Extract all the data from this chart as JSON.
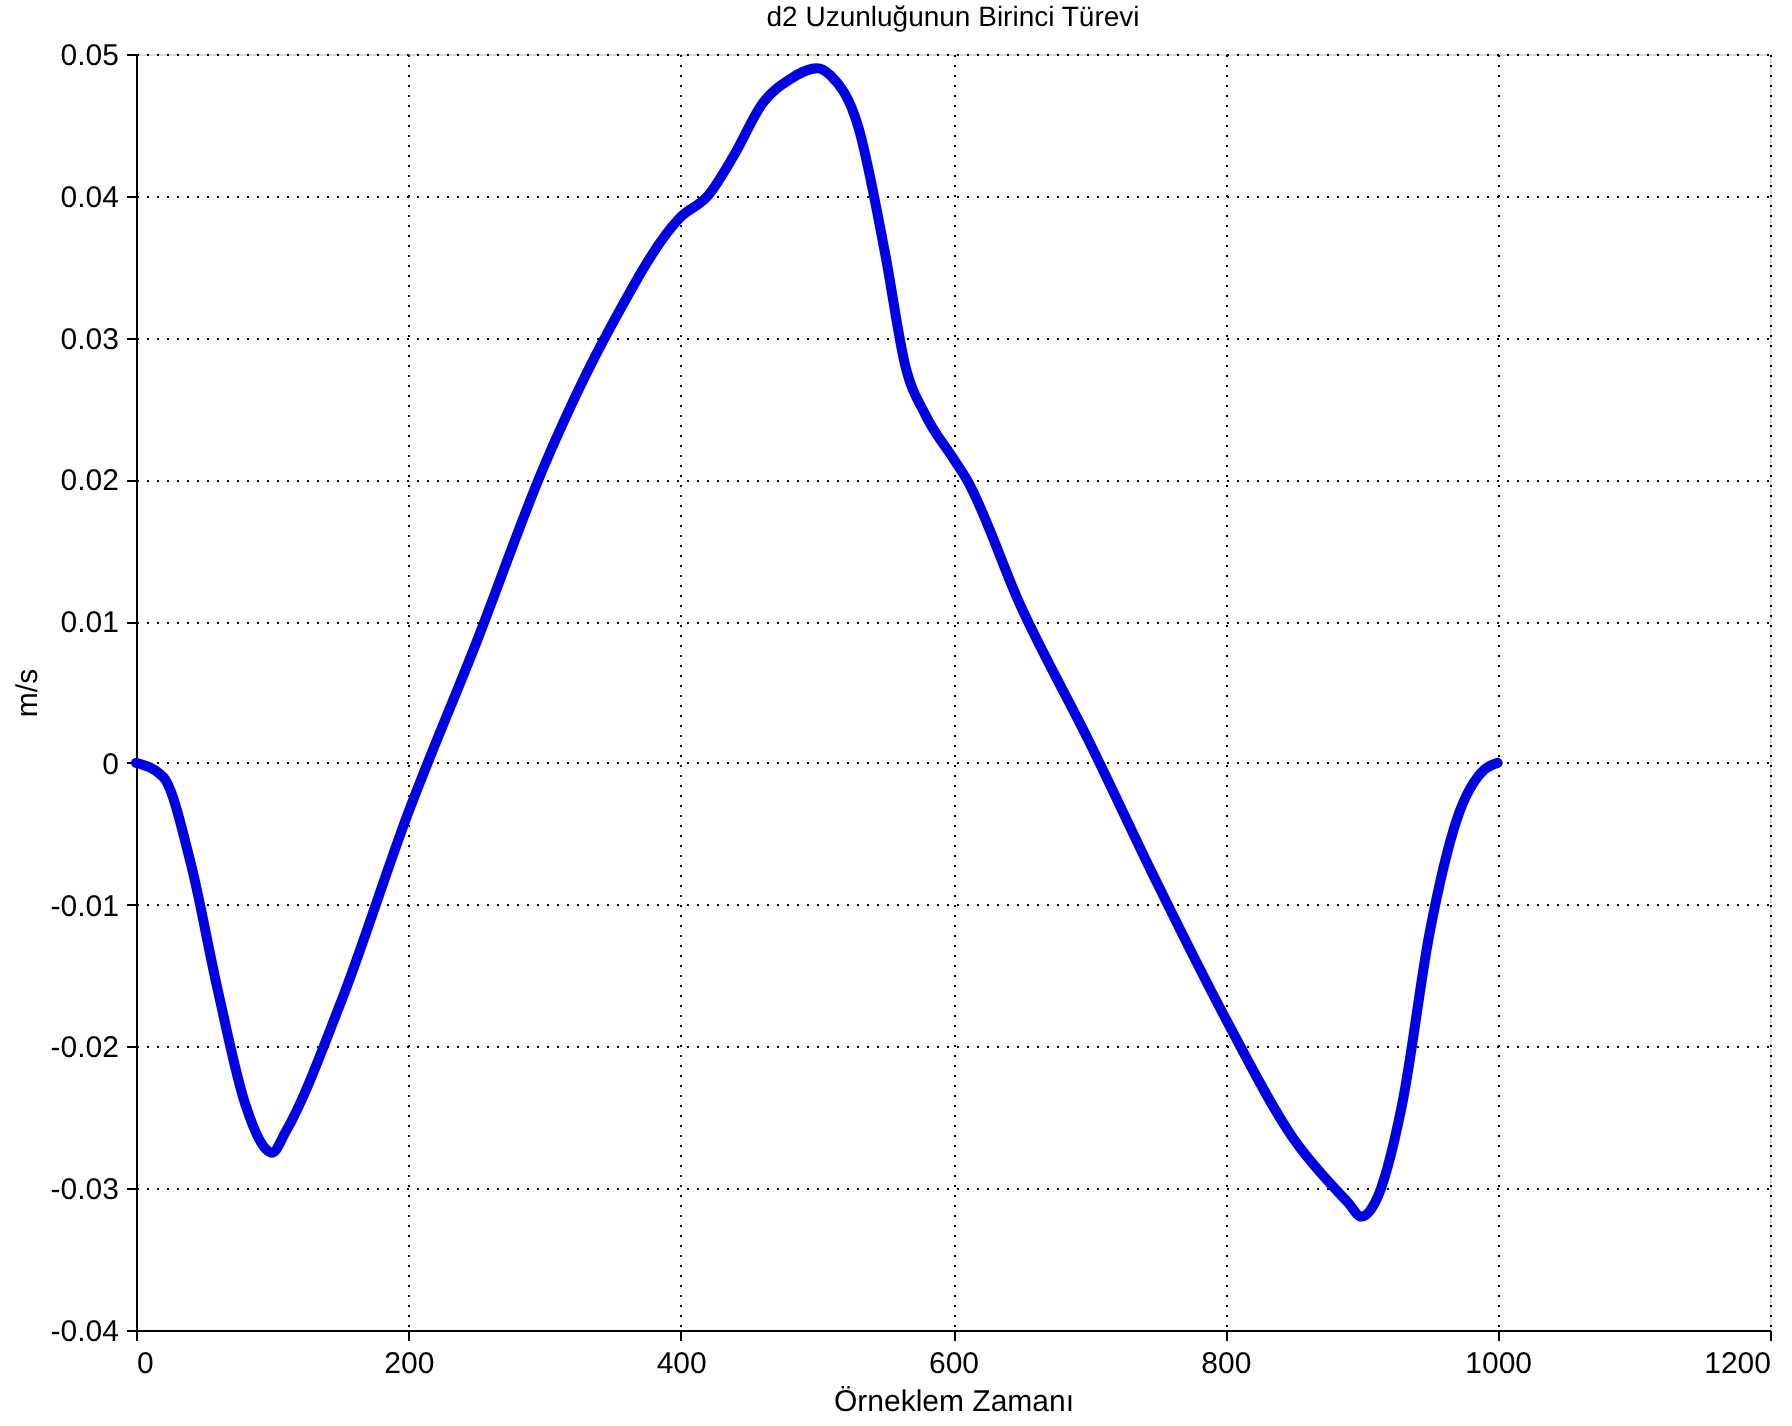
{
  "chart_data": {
    "type": "line",
    "title": "d2 Uzunluğunun Birinci Türevi",
    "xlabel": "Örneklem Zamanı",
    "ylabel": "m/s",
    "x": [
      0,
      20,
      40,
      60,
      80,
      95,
      100,
      110,
      150,
      200,
      250,
      300,
      350,
      400,
      420,
      440,
      460,
      480,
      500,
      510,
      530,
      550,
      565,
      580,
      600,
      610,
      650,
      700,
      750,
      800,
      850,
      890,
      900,
      910,
      930,
      950,
      970,
      990,
      1000
    ],
    "series": [
      {
        "color": "#0000e0",
        "values": [
          0,
          -0.001,
          -0.007,
          -0.016,
          -0.024,
          -0.0272,
          -0.0275,
          -0.026,
          -0.017,
          -0.0035,
          0.0085,
          0.021,
          0.031,
          0.0385,
          0.04,
          0.043,
          0.0465,
          0.0482,
          0.049,
          0.0485,
          0.045,
          0.036,
          0.028,
          0.0245,
          0.0215,
          0.02,
          0.011,
          0.0015,
          -0.0085,
          -0.018,
          -0.0265,
          -0.031,
          -0.032,
          -0.031,
          -0.024,
          -0.012,
          -0.004,
          -0.0005,
          0
        ]
      }
    ],
    "xlim": [
      0,
      1200
    ],
    "xticks": [
      0,
      200,
      400,
      600,
      800,
      1000,
      1200
    ],
    "ylim": [
      -0.04,
      0.05
    ],
    "yticks": [
      -0.04,
      -0.03,
      -0.02,
      -0.01,
      0,
      0.01,
      0.02,
      0.03,
      0.04,
      0.05
    ],
    "grid": true
  }
}
